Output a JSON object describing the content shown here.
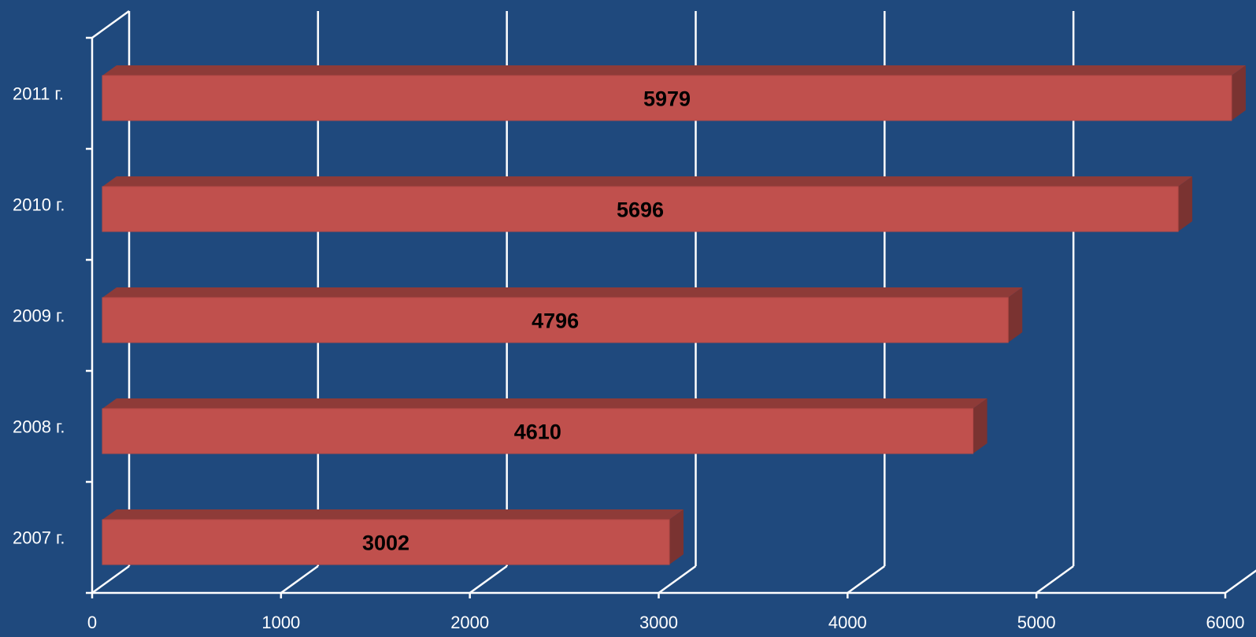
{
  "chart_data": {
    "type": "bar",
    "orientation": "horizontal",
    "style": "3d",
    "categories": [
      "2007 г.",
      "2008 г.",
      "2009 г.",
      "2010 г.",
      "2011 г."
    ],
    "values": [
      3002,
      4610,
      4796,
      5696,
      5979
    ],
    "data_labels": [
      "3002",
      "4610",
      "4796",
      "5696",
      "5979"
    ],
    "xlim": [
      0,
      6000
    ],
    "x_ticks": [
      0,
      1000,
      2000,
      3000,
      4000,
      5000,
      6000
    ],
    "x_tick_labels": [
      "0",
      "1000",
      "2000",
      "3000",
      "4000",
      "5000",
      "6000"
    ],
    "grid": true,
    "legend": false,
    "colors": {
      "background": "#1f497d",
      "bar_front": "#c0504d",
      "bar_top": "#8e3b38",
      "bar_side": "#7a3331",
      "axis": "#ffffff",
      "grid": "#ffffff"
    }
  }
}
